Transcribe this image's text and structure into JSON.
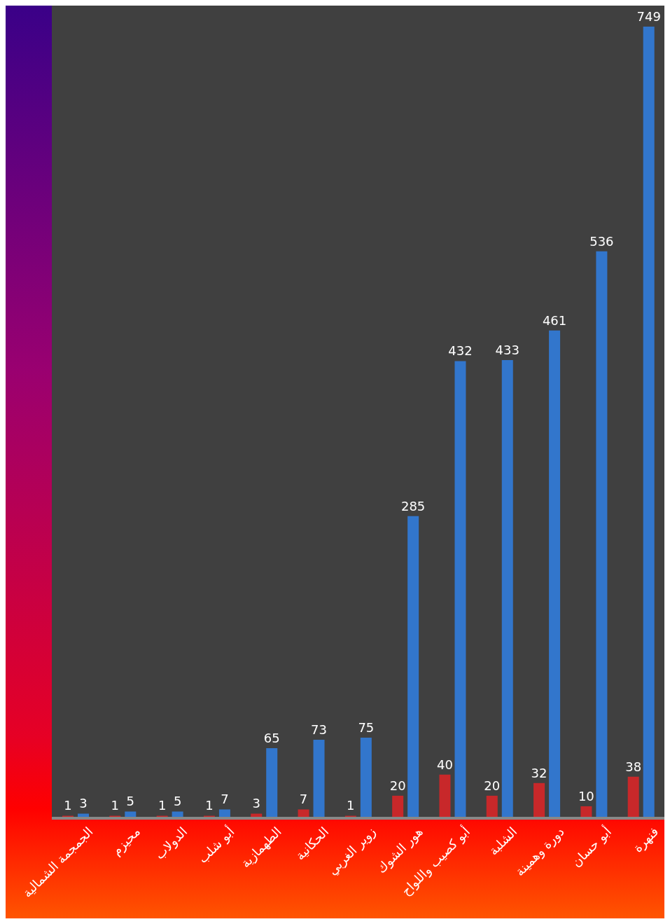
{
  "chart_data": {
    "type": "bar",
    "categories": [
      "الجمجمة الشمالية",
      "محيزم",
      "الدولاب",
      "أبو شلب",
      "الطهمازية",
      "الحكانية",
      "زوير الغربي",
      "هور الشوك",
      "أبو كصيب واللواح",
      "الشلبة",
      "دورة وهمينة",
      "أبو حسان",
      "فنهرة"
    ],
    "series": [
      {
        "color": "#c8282a",
        "values": [
          1,
          1,
          1,
          1,
          3,
          7,
          1,
          20,
          40,
          20,
          32,
          10,
          38
        ]
      },
      {
        "color": "#3276cc",
        "values": [
          3,
          5,
          5,
          7,
          65,
          73,
          75,
          285,
          432,
          433,
          461,
          536,
          749
        ]
      }
    ],
    "data_labels": true,
    "grid": false,
    "legend": false
  }
}
